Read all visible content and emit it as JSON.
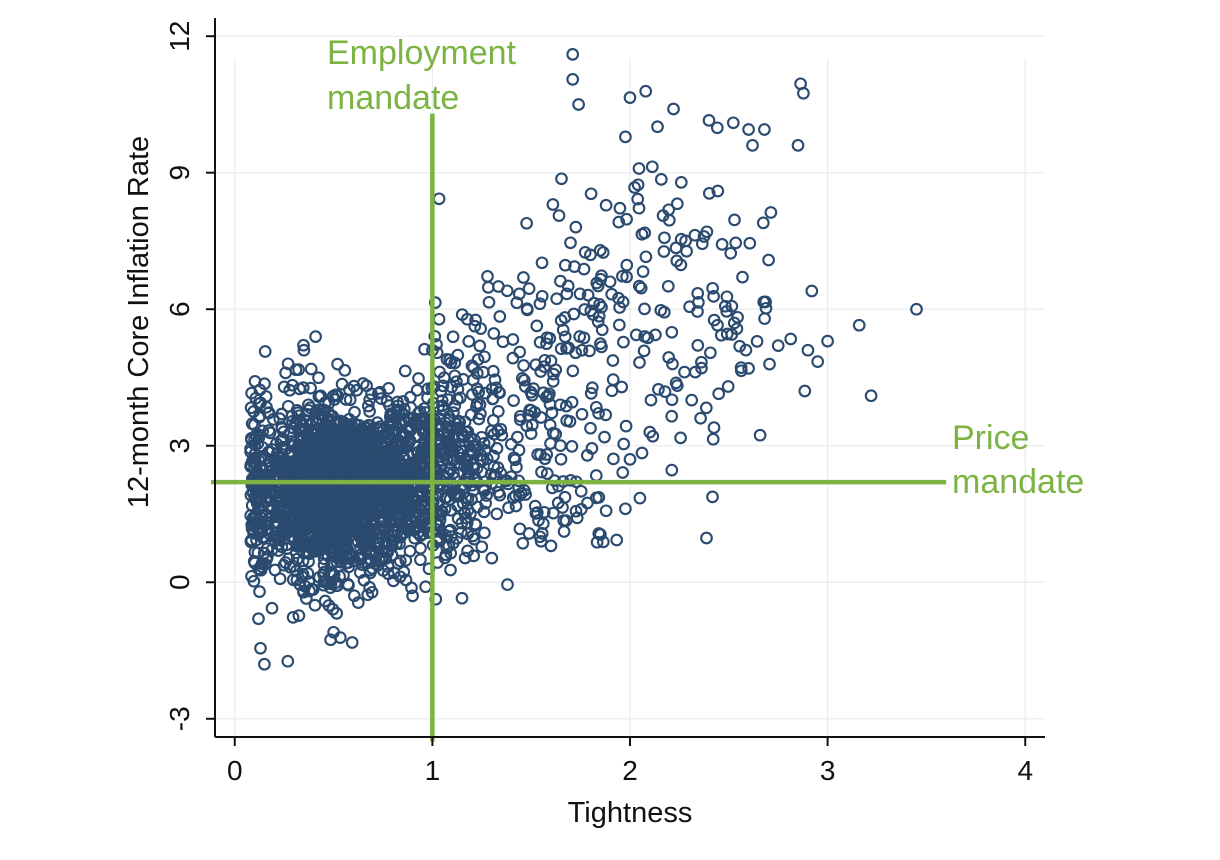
{
  "chart_data": {
    "type": "scatter",
    "title": "",
    "xlabel": "Tightness",
    "ylabel": "12-month Core Inflation Rate",
    "xlim": [
      -0.1,
      4.1
    ],
    "ylim": [
      -3.4,
      12.4
    ],
    "x_ticks": [
      0,
      1,
      2,
      3,
      4
    ],
    "y_ticks": [
      -3,
      0,
      3,
      6,
      9,
      12
    ],
    "grid": true,
    "legend": "none",
    "colors": {
      "points": "#2b4a6f",
      "mandate": "#7cb342",
      "grid": "#e9ecef",
      "axis": "#111111"
    },
    "mandates": {
      "employment": {
        "label_lines": [
          "Employment",
          "mandate"
        ],
        "x": 1.0,
        "y_from": -3.5,
        "y_to": 10.3
      },
      "price": {
        "label_lines": [
          "Price",
          "mandate"
        ],
        "y": 2.2,
        "x_from": -0.12,
        "x_to": 3.6
      }
    },
    "series": [
      {
        "clusters": [
          {
            "cx": 0.45,
            "cy": 2.0,
            "sx": 0.22,
            "sy": 1.0,
            "n": 1400,
            "xmin": 0.08,
            "xmax": 1.3
          },
          {
            "cx": 0.75,
            "cy": 2.3,
            "sx": 0.25,
            "sy": 0.85,
            "n": 700,
            "xmin": 0.3,
            "xmax": 1.35
          },
          {
            "cx": 1.1,
            "cy": 2.8,
            "sx": 0.15,
            "sy": 1.0,
            "n": 170,
            "xmin": 0.8,
            "xmax": 1.45
          },
          {
            "cx": 1.5,
            "cy": 4.6,
            "sx": 0.22,
            "sy": 1.4,
            "n": 150,
            "xmin": 1.0,
            "xmax": 2.0
          },
          {
            "cx": 1.6,
            "cy": 2.0,
            "sx": 0.2,
            "sy": 0.7,
            "n": 60,
            "xmin": 1.2,
            "xmax": 2.0
          },
          {
            "cx": 2.2,
            "cy": 6.3,
            "sx": 0.32,
            "sy": 1.8,
            "n": 160,
            "xmin": 1.6,
            "xmax": 2.9
          }
        ],
        "points": [
          [
            1.71,
            11.6
          ],
          [
            1.71,
            11.05
          ],
          [
            1.74,
            10.5
          ],
          [
            2.0,
            10.65
          ],
          [
            2.22,
            10.4
          ],
          [
            2.4,
            10.15
          ],
          [
            2.6,
            9.95
          ],
          [
            2.68,
            9.95
          ],
          [
            2.85,
            9.6
          ],
          [
            2.62,
            9.6
          ],
          [
            1.0,
            5.1
          ],
          [
            3.45,
            6.0
          ],
          [
            3.16,
            5.65
          ],
          [
            3.22,
            4.1
          ],
          [
            2.95,
            4.85
          ],
          [
            2.92,
            6.4
          ],
          [
            3.0,
            5.3
          ],
          [
            0.13,
            -1.45
          ],
          [
            0.15,
            -1.8
          ],
          [
            1.38,
            -0.05
          ],
          [
            1.15,
            -0.35
          ],
          [
            0.5,
            -1.1
          ],
          [
            0.27,
            4.8
          ],
          [
            0.35,
            5.1
          ],
          [
            2.0,
            2.7
          ],
          [
            2.05,
            1.85
          ],
          [
            1.85,
            1.05
          ],
          [
            1.6,
            0.8
          ],
          [
            1.55,
            0.9
          ],
          [
            2.1,
            3.3
          ],
          [
            2.6,
            4.7
          ],
          [
            2.75,
            5.2
          ],
          [
            2.9,
            5.1
          ],
          [
            0.9,
            -0.3
          ],
          [
            0.12,
            -0.8
          ]
        ]
      }
    ]
  }
}
